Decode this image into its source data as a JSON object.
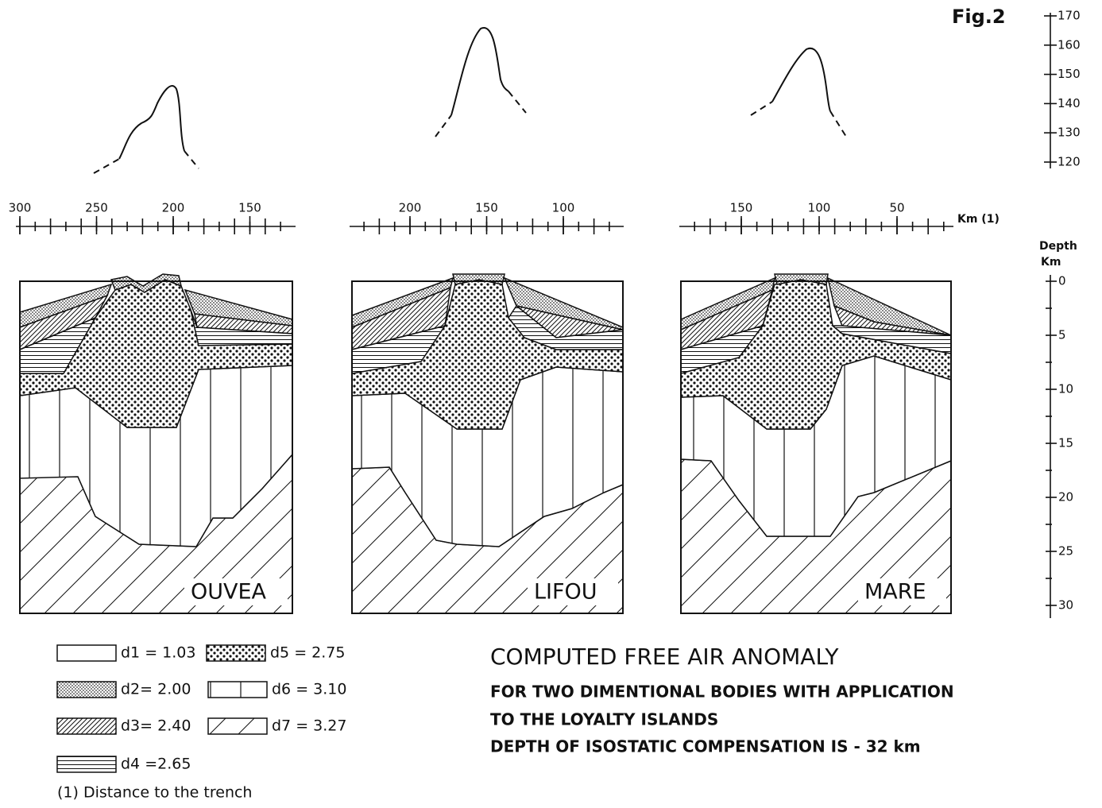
{
  "figure_label": "Fig.2",
  "anomaly_scale": {
    "ticks": [
      120,
      130,
      140,
      150,
      160,
      170
    ]
  },
  "depth_scale": {
    "title": "Depth",
    "unit": "Km",
    "ticks": [
      0,
      5,
      10,
      15,
      20,
      25,
      30
    ]
  },
  "distance_unit": "Km (1)",
  "panels": [
    {
      "name": "OUVEA",
      "distance_ticks": [
        300,
        250,
        200,
        150
      ]
    },
    {
      "name": "LIFOU",
      "distance_ticks": [
        200,
        150,
        100
      ]
    },
    {
      "name": "MARE",
      "distance_ticks": [
        150,
        100,
        50
      ]
    }
  ],
  "legend": [
    "d1 = 1.03",
    "d2= 2.00",
    "d3= 2.40",
    "d4 =2.65",
    "d5 = 2.75",
    "d6 = 3.10",
    "d7 = 3.27"
  ],
  "note": "(1) Distance to the trench",
  "title": "COMPUTED FREE AIR ANOMALY",
  "subtitle_lines": [
    "FOR TWO DIMENTIONAL BODIES WITH APPLICATION",
    "TO THE LOYALTY ISLANDS",
    "DEPTH  OF ISOSTATIC COMPENSATION IS - 32 km"
  ]
}
